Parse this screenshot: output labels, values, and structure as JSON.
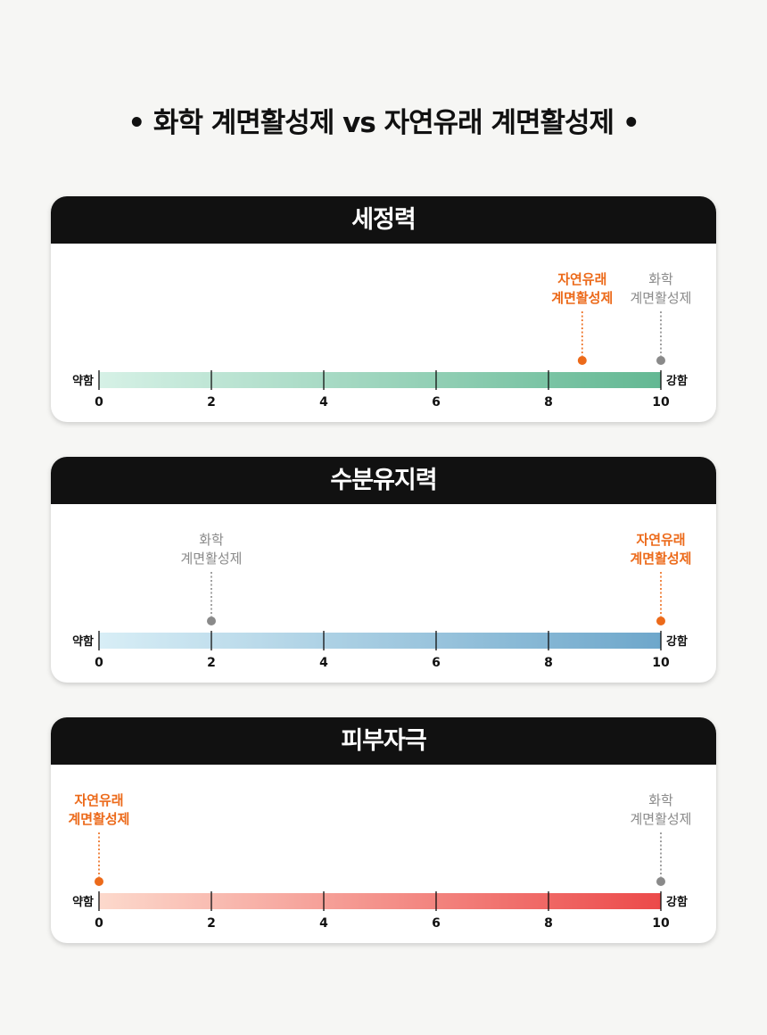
{
  "page": {
    "title": "• 화학 계면활성제 vs 자연유래 계면활성제 •"
  },
  "colors": {
    "natural": "#ec6a1a",
    "chemical": "#8a8a8a",
    "header": "#111111"
  },
  "chart_data": [
    {
      "type": "scatter",
      "title": "세정력",
      "x_range": [
        0,
        10
      ],
      "ticks": [
        "0",
        "2",
        "4",
        "6",
        "8",
        "10"
      ],
      "low_label": "약함",
      "high_label": "강함",
      "gradient": [
        "#d6f1e6",
        "#63b893"
      ],
      "series": [
        {
          "name_line1": "자연유래",
          "name_line2": "계면활성제",
          "value": 8.6,
          "kind": "natural"
        },
        {
          "name_line1": "화학",
          "name_line2": "계면활성제",
          "value": 10,
          "kind": "chemical"
        }
      ]
    },
    {
      "type": "scatter",
      "title": "수분유지력",
      "x_range": [
        0,
        10
      ],
      "ticks": [
        "0",
        "2",
        "4",
        "6",
        "8",
        "10"
      ],
      "low_label": "약함",
      "high_label": "강함",
      "gradient": [
        "#d8eef6",
        "#6ea7cb"
      ],
      "series": [
        {
          "name_line1": "화학",
          "name_line2": "계면활성제",
          "value": 2,
          "kind": "chemical"
        },
        {
          "name_line1": "자연유래",
          "name_line2": "계면활성제",
          "value": 10,
          "kind": "natural"
        }
      ]
    },
    {
      "type": "scatter",
      "title": "피부자극",
      "x_range": [
        0,
        10
      ],
      "ticks": [
        "0",
        "2",
        "4",
        "6",
        "8",
        "10"
      ],
      "low_label": "약함",
      "high_label": "강함",
      "gradient": [
        "#fcd9cc",
        "#ec4a4a"
      ],
      "series": [
        {
          "name_line1": "자연유래",
          "name_line2": "계면활성제",
          "value": 0,
          "kind": "natural"
        },
        {
          "name_line1": "화학",
          "name_line2": "계면활성제",
          "value": 10,
          "kind": "chemical"
        }
      ]
    }
  ]
}
